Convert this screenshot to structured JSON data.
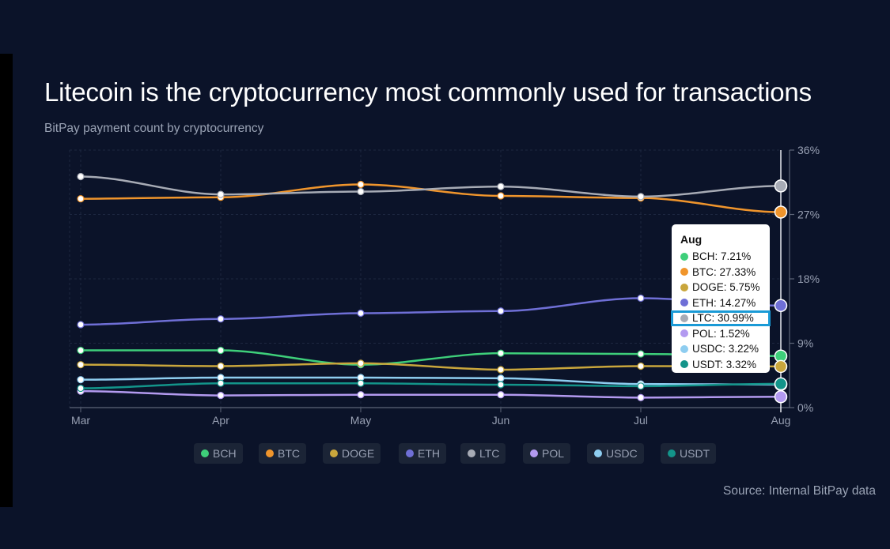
{
  "chart_data": {
    "type": "line",
    "title": "Litecoin is the cryptocurrency most commonly used for transactions",
    "subtitle": "BitPay payment count by cryptocurrency",
    "source": "Source: Internal BitPay data",
    "xlabel": "",
    "ylabel": "",
    "x": [
      "Mar",
      "Apr",
      "May",
      "Jun",
      "Jul",
      "Aug"
    ],
    "ylim": [
      0,
      36
    ],
    "yticks": [
      0,
      9,
      18,
      27,
      36
    ],
    "ytick_labels": [
      "0%",
      "9%",
      "18%",
      "27%",
      "36%"
    ],
    "y_axis_position": "right",
    "grid": true,
    "legend_position": "bottom",
    "series": [
      {
        "name": "BCH",
        "color": "#3ecf7a",
        "values": [
          8.0,
          8.0,
          6.0,
          7.6,
          7.5,
          7.21
        ]
      },
      {
        "name": "BTC",
        "color": "#f0952c",
        "values": [
          29.2,
          29.4,
          31.2,
          29.6,
          29.3,
          27.33
        ]
      },
      {
        "name": "DOGE",
        "color": "#c9a63c",
        "values": [
          6.0,
          5.8,
          6.2,
          5.3,
          5.8,
          5.75
        ]
      },
      {
        "name": "ETH",
        "color": "#6f6fd6",
        "values": [
          11.6,
          12.4,
          13.2,
          13.5,
          15.3,
          14.27
        ]
      },
      {
        "name": "LTC",
        "color": "#a7abb5",
        "values": [
          32.3,
          29.8,
          30.2,
          30.9,
          29.5,
          30.99
        ]
      },
      {
        "name": "POL",
        "color": "#b39af0",
        "values": [
          2.3,
          1.7,
          1.8,
          1.8,
          1.4,
          1.52
        ]
      },
      {
        "name": "USDC",
        "color": "#8ecdf0",
        "values": [
          3.9,
          4.2,
          4.2,
          4.1,
          3.3,
          3.22
        ]
      },
      {
        "name": "USDT",
        "color": "#13948a",
        "values": [
          2.7,
          3.4,
          3.4,
          3.2,
          3.0,
          3.32
        ]
      }
    ],
    "tooltip": {
      "title": "Aug",
      "highlighted": "LTC",
      "rows": [
        {
          "name": "BCH",
          "text": "BCH: 7.21%"
        },
        {
          "name": "BTC",
          "text": "BTC: 27.33%"
        },
        {
          "name": "DOGE",
          "text": "DOGE: 5.75%"
        },
        {
          "name": "ETH",
          "text": "ETH: 14.27%"
        },
        {
          "name": "LTC",
          "text": "LTC: 30.99%"
        },
        {
          "name": "POL",
          "text": "POL: 1.52%"
        },
        {
          "name": "USDC",
          "text": "USDC: 3.22%"
        },
        {
          "name": "USDT",
          "text": "USDT: 3.32%"
        }
      ]
    }
  }
}
